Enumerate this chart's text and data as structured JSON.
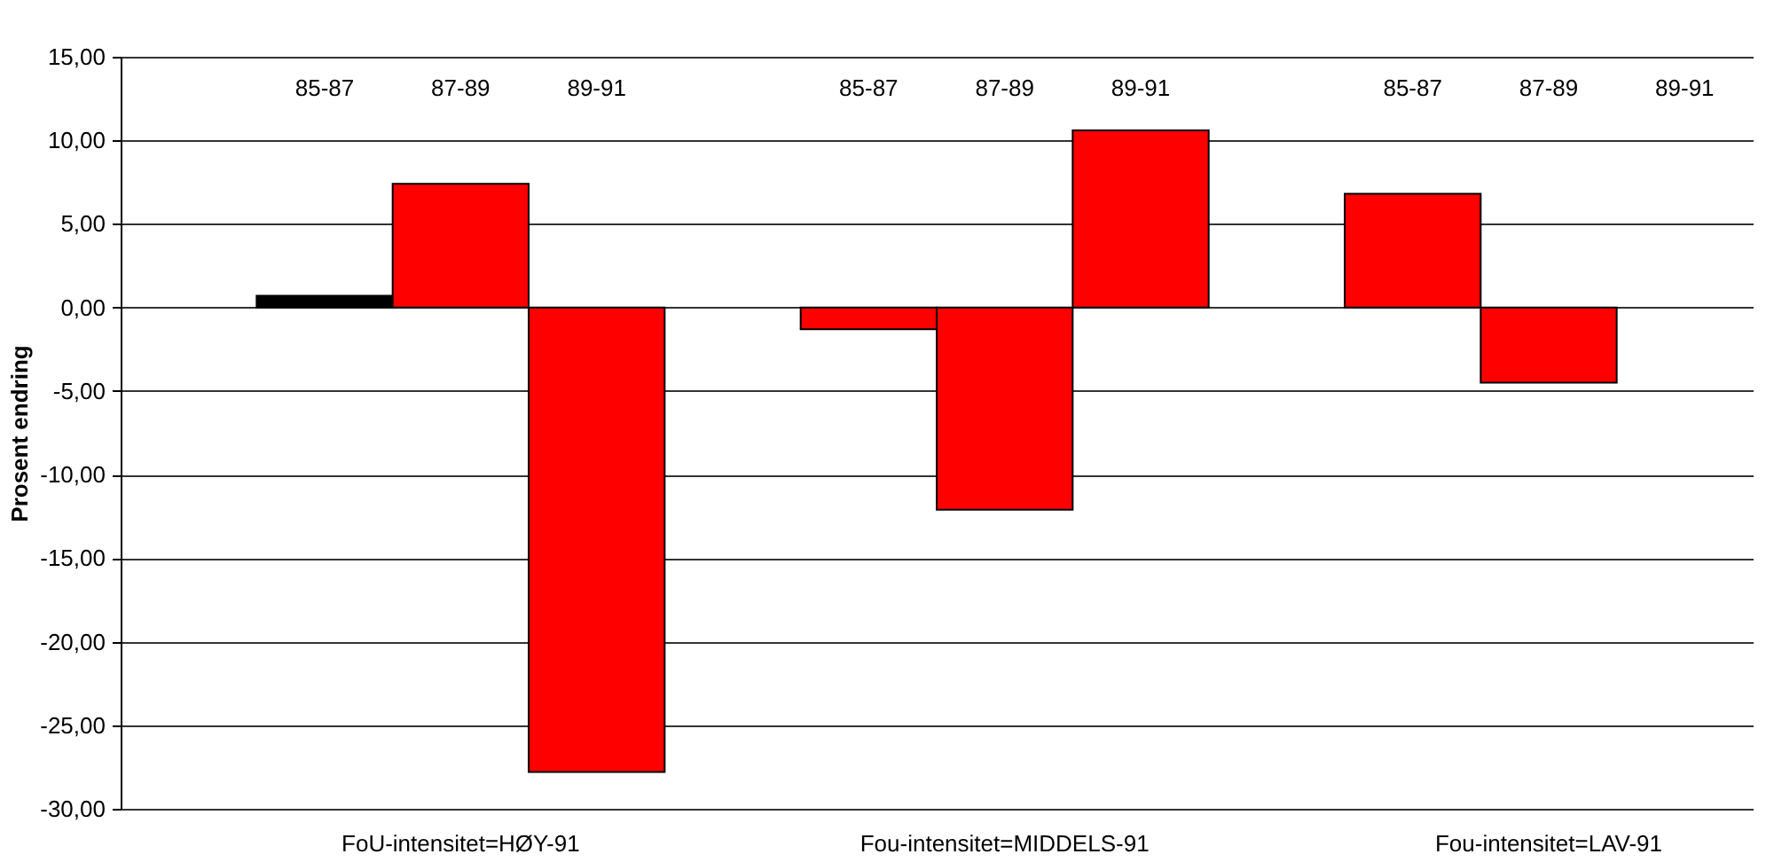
{
  "chart_data": {
    "type": "bar",
    "ylabel": "Prosent endring",
    "categories": [
      "85-87",
      "87-89",
      "89-91",
      "85-87",
      "87-89",
      "89-91",
      "85-87",
      "87-89",
      "89-91"
    ],
    "values": [
      0.7,
      7.4,
      -27.8,
      -1.3,
      -12.1,
      10.6,
      6.8,
      -4.5,
      null
    ],
    "colors": [
      "#000000",
      "#ff0000",
      "#ff0000",
      "#ff0000",
      "#ff0000",
      "#ff0000",
      "#ff0000",
      "#ff0000",
      "#ff0000"
    ],
    "annotations": [
      "FoU-intensitet=HØY-91",
      "Fou-intensitet=MIDDELS-91",
      "Fou-intensitet=LAV-91"
    ],
    "ylim": [
      -30,
      15
    ],
    "yticks": [
      {
        "value": -30,
        "label": "-30,00"
      },
      {
        "value": -25,
        "label": "-25,00"
      },
      {
        "value": -20,
        "label": "-20,00"
      },
      {
        "value": -15,
        "label": "-15,00"
      },
      {
        "value": -10,
        "label": "-10,00"
      },
      {
        "value": -5,
        "label": "-5,00"
      },
      {
        "value": 0,
        "label": "0,00"
      },
      {
        "value": 5,
        "label": "5,00"
      },
      {
        "value": 10,
        "label": "10,00"
      },
      {
        "value": 15,
        "label": "15,00"
      }
    ],
    "grid": "y"
  }
}
